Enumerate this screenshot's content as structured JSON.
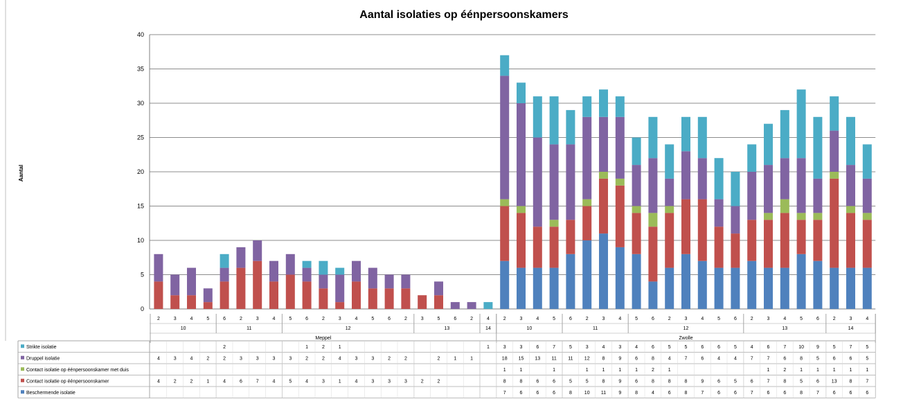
{
  "chart_data": {
    "type": "bar",
    "stacked": true,
    "title": "Aantal isolaties op éénpersoonskamers",
    "ylabel": "Aantal",
    "ylim": [
      0,
      40
    ],
    "yticks": [
      "0",
      "5",
      "10",
      "15",
      "20",
      "25",
      "30",
      "35",
      "40"
    ],
    "grid": true,
    "legend_placement": "data-table-left",
    "colors": {
      "beschermende": "#4f81bd",
      "contact": "#c0504d",
      "contact_dus": "#9bbb59",
      "druppel": "#8064a2",
      "strikte": "#4bacc6"
    },
    "groups": [
      {
        "name": "Meppel",
        "subgroups": [
          {
            "name": "10",
            "weeks": [
              "2",
              "3",
              "4",
              "5"
            ]
          },
          {
            "name": "11",
            "weeks": [
              "6",
              "2",
              "3",
              "4"
            ]
          },
          {
            "name": "12",
            "weeks": [
              "5",
              "6",
              "2",
              "3",
              "4",
              "5",
              "6",
              "2"
            ]
          },
          {
            "name": "13",
            "weeks": [
              "3",
              "5",
              "6",
              "2"
            ]
          },
          {
            "name": "14",
            "weeks": [
              "4"
            ]
          }
        ]
      },
      {
        "name": "Zwolle",
        "subgroups": [
          {
            "name": "10",
            "weeks": [
              "2",
              "3",
              "4",
              "5"
            ]
          },
          {
            "name": "11",
            "weeks": [
              "6",
              "2",
              "3",
              "4"
            ]
          },
          {
            "name": "12",
            "weeks": [
              "5",
              "6",
              "2",
              "3",
              "4",
              "5",
              "6"
            ]
          },
          {
            "name": "13",
            "weeks": [
              "2",
              "3",
              "4",
              "5",
              "6"
            ]
          },
          {
            "name": "14",
            "weeks": [
              "2",
              "3",
              "4"
            ]
          }
        ]
      }
    ],
    "series": [
      {
        "name": "Strikte isolatie",
        "key": "strikte",
        "values": [
          null,
          null,
          null,
          null,
          2,
          null,
          null,
          null,
          null,
          1,
          2,
          1,
          null,
          null,
          null,
          null,
          null,
          null,
          null,
          null,
          1,
          3,
          3,
          6,
          7,
          5,
          3,
          4,
          3,
          4,
          6,
          5,
          5,
          6,
          6,
          5,
          4,
          6,
          7,
          10,
          9,
          5,
          7,
          5
        ]
      },
      {
        "name": "Druppel isolatie",
        "key": "druppel",
        "values": [
          4,
          3,
          4,
          2,
          2,
          3,
          3,
          3,
          3,
          2,
          2,
          4,
          3,
          3,
          2,
          2,
          null,
          2,
          1,
          1,
          null,
          18,
          15,
          13,
          11,
          11,
          12,
          8,
          9,
          6,
          8,
          4,
          7,
          6,
          4,
          4,
          7,
          7,
          6,
          8,
          5,
          6,
          6,
          5
        ]
      },
      {
        "name": "Contact isolatie op éénpersoonskamer met duis",
        "key": "contact_dus",
        "values": [
          null,
          null,
          null,
          null,
          null,
          null,
          null,
          null,
          null,
          null,
          null,
          null,
          null,
          null,
          null,
          null,
          null,
          null,
          null,
          null,
          null,
          1,
          1,
          null,
          1,
          null,
          1,
          1,
          1,
          1,
          2,
          1,
          null,
          null,
          null,
          null,
          null,
          1,
          2,
          1,
          1,
          1,
          1,
          1
        ]
      },
      {
        "name": "Contact isolatie op éénpersoonskamer",
        "key": "contact",
        "values": [
          4,
          2,
          2,
          1,
          4,
          6,
          7,
          4,
          5,
          4,
          3,
          1,
          4,
          3,
          3,
          3,
          2,
          2,
          null,
          null,
          null,
          8,
          8,
          6,
          6,
          5,
          5,
          8,
          9,
          6,
          8,
          8,
          8,
          9,
          6,
          5,
          6,
          7,
          8,
          5,
          6,
          13,
          8,
          7
        ]
      },
      {
        "name": "Beschermende isolatie",
        "key": "beschermende",
        "values": [
          null,
          null,
          null,
          null,
          null,
          null,
          null,
          null,
          null,
          null,
          null,
          null,
          null,
          null,
          null,
          null,
          null,
          null,
          null,
          null,
          null,
          7,
          6,
          6,
          6,
          8,
          10,
          11,
          9,
          8,
          4,
          6,
          8,
          7,
          6,
          6,
          7,
          6,
          6,
          8,
          7,
          6,
          6,
          6
        ]
      }
    ]
  }
}
